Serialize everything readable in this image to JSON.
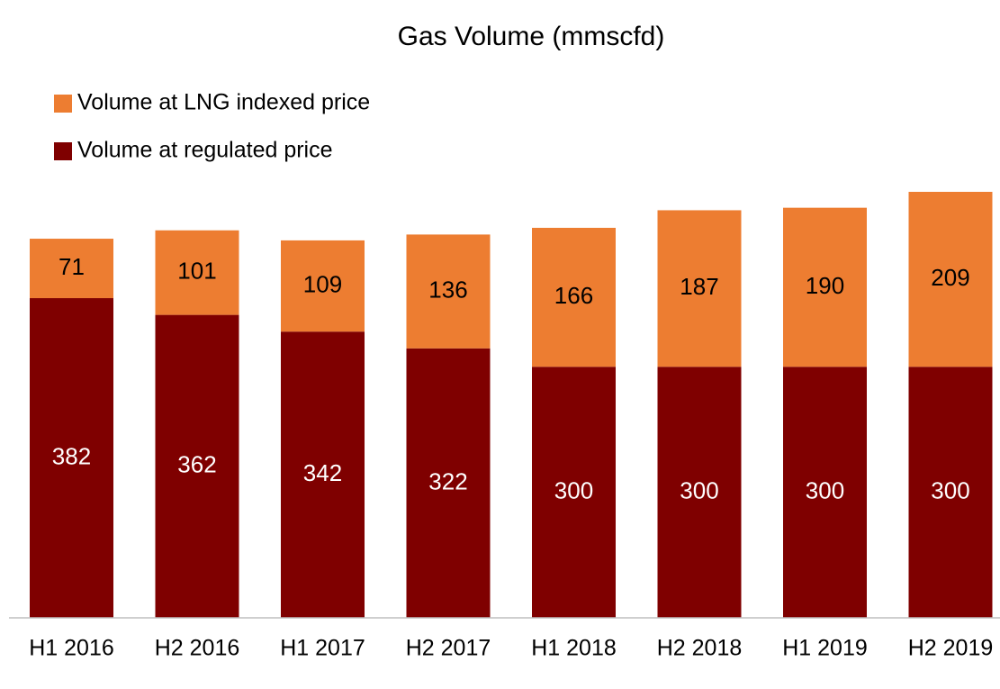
{
  "chart_data": {
    "type": "stacked_bar",
    "title": "Gas Volume (mmscfd)",
    "categories": [
      "H1 2016",
      "H2 2016",
      "H1 2017",
      "H2 2017",
      "H1 2018",
      "H2 2018",
      "H1 2019",
      "H2 2019"
    ],
    "series": [
      {
        "name": "Volume at LNG indexed price",
        "color": "#ED7D31",
        "values": [
          71,
          101,
          109,
          136,
          166,
          187,
          190,
          209
        ]
      },
      {
        "name": "Volume at regulated price",
        "color": "#7F0000",
        "values": [
          382,
          362,
          342,
          322,
          300,
          300,
          300,
          300
        ]
      }
    ]
  }
}
